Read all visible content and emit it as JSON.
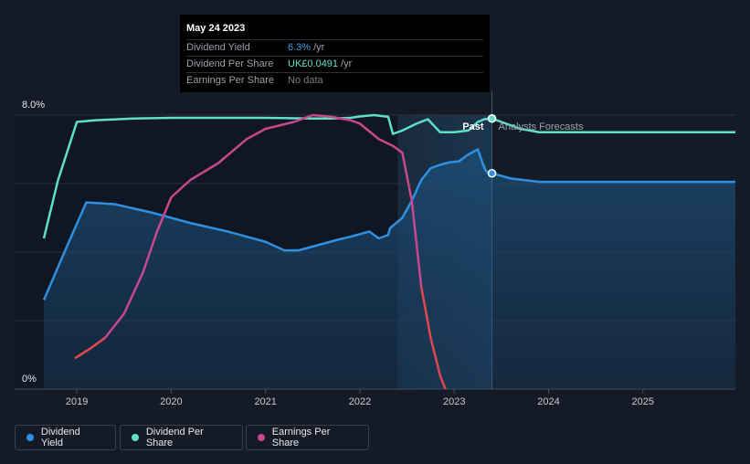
{
  "tooltip": {
    "date": "May 24 2023",
    "rows": [
      {
        "label": "Dividend Yield",
        "value": "6.3%",
        "unit": "/yr",
        "color": "#3c9ee8"
      },
      {
        "label": "Dividend Per Share",
        "value": "UK£0.0491",
        "unit": "/yr",
        "color": "#5fe0c6"
      },
      {
        "label": "Earnings Per Share",
        "value": "No data",
        "unit": "",
        "color": "#777d86"
      }
    ]
  },
  "labels": {
    "past": "Past",
    "forecast": "Analysts Forecasts"
  },
  "legend": [
    {
      "label": "Dividend Yield",
      "color": "#2f8fe0"
    },
    {
      "label": "Dividend Per Share",
      "color": "#5fe0c6"
    },
    {
      "label": "Earnings Per Share",
      "color": "#c8488e"
    }
  ],
  "chart_data": {
    "type": "line",
    "title": "",
    "xlabel": "",
    "ylabel": "",
    "ylim": [
      0,
      8.0
    ],
    "y_tick_labels": [
      "0%",
      "8.0%"
    ],
    "xlim": [
      2018.65,
      2025.98
    ],
    "x_ticks": [
      2019,
      2020,
      2021,
      2022,
      2023,
      2024,
      2025
    ],
    "past_end": 2023.4,
    "shaded_start": 2022.4,
    "series": [
      {
        "name": "Dividend Yield",
        "color": "#2f8fe0",
        "fill": true,
        "x": [
          2018.65,
          2018.9,
          2019.1,
          2019.4,
          2019.8,
          2020.2,
          2020.6,
          2021.0,
          2021.2,
          2021.35,
          2021.55,
          2021.75,
          2021.9,
          2022.1,
          2022.2,
          2022.3,
          2022.32,
          2022.45,
          2022.55,
          2022.65,
          2022.75,
          2022.85,
          2022.95,
          2023.05,
          2023.15,
          2023.25,
          2023.3,
          2023.33,
          2023.36,
          2023.4,
          2023.6,
          2023.9,
          2024.5,
          2025.98
        ],
        "values": [
          2.6,
          4.2,
          5.45,
          5.4,
          5.15,
          4.85,
          4.6,
          4.3,
          4.05,
          4.05,
          4.2,
          4.35,
          4.45,
          4.6,
          4.4,
          4.5,
          4.7,
          5.0,
          5.5,
          6.1,
          6.45,
          6.55,
          6.62,
          6.65,
          6.85,
          7.0,
          6.6,
          6.4,
          6.3,
          6.3,
          6.15,
          6.05,
          6.05,
          6.05
        ]
      },
      {
        "name": "Dividend Per Share",
        "color": "#5fe0c6",
        "fill": false,
        "x": [
          2018.65,
          2018.8,
          2019.0,
          2019.2,
          2019.6,
          2020.0,
          2020.5,
          2021.0,
          2021.5,
          2021.7,
          2021.9,
          2022.0,
          2022.15,
          2022.3,
          2022.35,
          2022.45,
          2022.6,
          2022.72,
          2022.85,
          2023.0,
          2023.15,
          2023.25,
          2023.32,
          2023.4,
          2023.55,
          2023.7,
          2023.9,
          2024.3,
          2025.0,
          2025.98
        ],
        "values": [
          4.4,
          6.1,
          7.8,
          7.85,
          7.9,
          7.92,
          7.92,
          7.92,
          7.9,
          7.9,
          7.92,
          7.96,
          8.0,
          7.95,
          7.45,
          7.55,
          7.75,
          7.88,
          7.5,
          7.5,
          7.55,
          7.8,
          7.88,
          7.9,
          7.75,
          7.6,
          7.5,
          7.5,
          7.5,
          7.5
        ]
      },
      {
        "name": "Earnings Per Share",
        "color": "#c8488e",
        "fill": false,
        "x": [
          2018.98,
          2019.15,
          2019.3,
          2019.5,
          2019.7,
          2019.85,
          2020.0,
          2020.2,
          2020.5,
          2020.8,
          2021.0,
          2021.3,
          2021.5,
          2021.7,
          2021.9,
          2022.0,
          2022.2,
          2022.35,
          2022.45,
          2022.55,
          2022.65,
          2022.75,
          2022.85,
          2022.92,
          2023.0
        ],
        "values": [
          0.9,
          1.2,
          1.5,
          2.2,
          3.4,
          4.6,
          5.6,
          6.1,
          6.6,
          7.3,
          7.6,
          7.8,
          8.0,
          7.95,
          7.85,
          7.75,
          7.3,
          7.1,
          6.9,
          5.5,
          3.0,
          1.5,
          0.4,
          -0.1,
          -0.3
        ]
      }
    ]
  }
}
